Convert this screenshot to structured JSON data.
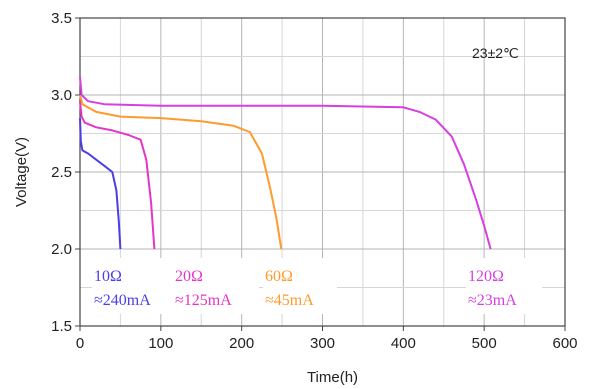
{
  "chart_data": {
    "type": "line",
    "title": "",
    "xlabel": "Time(h)",
    "ylabel": "Voltage(V)",
    "xlim": [
      0,
      600
    ],
    "ylim": [
      1.5,
      3.5
    ],
    "xticks": [
      0,
      100,
      200,
      300,
      400,
      500,
      600
    ],
    "xtick_labels": [
      "0",
      "100",
      "200",
      "300",
      "400",
      "500",
      "600"
    ],
    "yticks": [
      1.5,
      2.0,
      2.5,
      3.0,
      3.5
    ],
    "ytick_labels": [
      "1.5",
      "2.0",
      "2.5",
      "3.0",
      "3.5"
    ],
    "grid": true,
    "annotation": "23±2℃",
    "series": [
      {
        "resistance": "10Ω",
        "current": "≈240mA",
        "color": "#4b3ee6",
        "points": [
          [
            0,
            2.85
          ],
          [
            1,
            2.7
          ],
          [
            3,
            2.64
          ],
          [
            10,
            2.62
          ],
          [
            20,
            2.58
          ],
          [
            30,
            2.54
          ],
          [
            40,
            2.5
          ],
          [
            45,
            2.38
          ],
          [
            48,
            2.18
          ],
          [
            50,
            2.0
          ]
        ]
      },
      {
        "resistance": "20Ω",
        "current": "≈125mA",
        "color": "#e535c8",
        "points": [
          [
            0,
            2.96
          ],
          [
            2,
            2.86
          ],
          [
            6,
            2.82
          ],
          [
            20,
            2.79
          ],
          [
            40,
            2.77
          ],
          [
            60,
            2.74
          ],
          [
            75,
            2.71
          ],
          [
            82,
            2.58
          ],
          [
            88,
            2.3
          ],
          [
            92,
            2.0
          ]
        ]
      },
      {
        "resistance": "60Ω",
        "current": "≈45mA",
        "color": "#ff9a2e",
        "points": [
          [
            0,
            3.0
          ],
          [
            3,
            2.94
          ],
          [
            20,
            2.89
          ],
          [
            50,
            2.86
          ],
          [
            100,
            2.85
          ],
          [
            150,
            2.83
          ],
          [
            190,
            2.8
          ],
          [
            210,
            2.76
          ],
          [
            225,
            2.62
          ],
          [
            235,
            2.4
          ],
          [
            243,
            2.2
          ],
          [
            249,
            2.0
          ]
        ]
      },
      {
        "resistance": "120Ω",
        "current": "≈23mA",
        "color": "#d63fe0",
        "points": [
          [
            0,
            3.12
          ],
          [
            2,
            3.0
          ],
          [
            10,
            2.96
          ],
          [
            30,
            2.94
          ],
          [
            100,
            2.93
          ],
          [
            300,
            2.93
          ],
          [
            400,
            2.92
          ],
          [
            420,
            2.89
          ],
          [
            440,
            2.84
          ],
          [
            460,
            2.73
          ],
          [
            475,
            2.55
          ],
          [
            490,
            2.32
          ],
          [
            500,
            2.15
          ],
          [
            508,
            2.0
          ]
        ]
      }
    ]
  }
}
